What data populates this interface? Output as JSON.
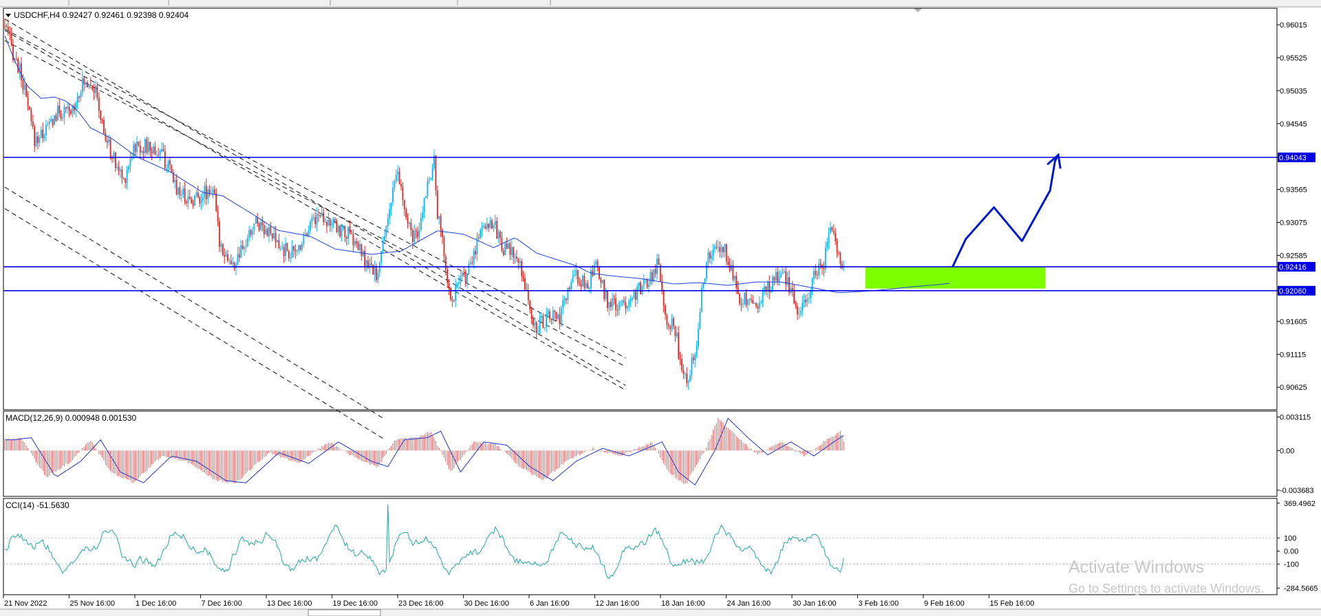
{
  "colors": {
    "bull": "#00b4ff",
    "bear": "#e0231e",
    "ma": "#2040e0",
    "level": "#0000e6",
    "zone": "#7dff00",
    "channel": "#222222",
    "macd_hist": "#e06060",
    "macd_signal": "#2233cc",
    "cci": "#20a8a0",
    "projection": "#0018d0"
  },
  "main": {
    "header": "USDCHF,H4  0.92427  0.92461  0.92398  0.92404",
    "y_ticks": [
      "0.96015",
      "0.95525",
      "0.95035",
      "0.94545",
      "0.94043",
      "0.93565",
      "0.93075",
      "0.92585",
      "0.92416",
      "0.92060",
      "0.91605",
      "0.91115",
      "0.90625"
    ],
    "levels": [
      {
        "label": "0.94043",
        "value": 0.94043
      },
      {
        "label": "0.92416",
        "value": 0.92416
      },
      {
        "label": "0.92060",
        "value": 0.9206
      }
    ]
  },
  "macd": {
    "header": "MACD(12,26,9) 0.000948 0.001530",
    "y_ticks": [
      "0.003115",
      "0.00",
      "-0.003683"
    ]
  },
  "cci": {
    "header": "CCI(14) -51.5630",
    "y_ticks": [
      "369.4962",
      "100",
      "0.00",
      "-100",
      "-284.5665"
    ]
  },
  "x_labels": [
    "21 Nov 2022",
    "25 Nov 16:00",
    "1 Dec 16:00",
    "7 Dec 16:00",
    "13 Dec 16:00",
    "19 Dec 16:00",
    "23 Dec 16:00",
    "30 Dec 16:00",
    "6 Jan 16:00",
    "12 Jan 16:00",
    "18 Jan 16:00",
    "24 Jan 16:00",
    "30 Jan 16:00",
    "3 Feb 16:00",
    "9 Feb 16:00",
    "15 Feb 16:00"
  ],
  "watermark": {
    "line1": "Activate Windows",
    "line2": "Go to Settings to activate Windows."
  },
  "chart_data": {
    "type": "candlestick",
    "symbol": "USDCHF",
    "timeframe": "H4",
    "ohlc_last": [
      0.92427,
      0.92461,
      0.92398,
      0.92404
    ],
    "ylim": [
      0.903,
      0.9625
    ],
    "moving_average_path": [
      [
        0,
        0.9585
      ],
      [
        6,
        0.9548
      ],
      [
        13,
        0.9512
      ],
      [
        22,
        0.9492
      ],
      [
        30,
        0.9494
      ],
      [
        37,
        0.9488
      ],
      [
        43,
        0.9477
      ],
      [
        52,
        0.9448
      ],
      [
        65,
        0.9432
      ],
      [
        80,
        0.9405
      ],
      [
        100,
        0.9383
      ],
      [
        120,
        0.9352
      ],
      [
        132,
        0.9347
      ],
      [
        150,
        0.932
      ],
      [
        165,
        0.9296
      ],
      [
        185,
        0.9287
      ],
      [
        200,
        0.9268
      ],
      [
        222,
        0.926
      ],
      [
        240,
        0.9265
      ],
      [
        262,
        0.9295
      ],
      [
        278,
        0.929
      ],
      [
        296,
        0.927
      ],
      [
        309,
        0.9285
      ],
      [
        322,
        0.9262
      ],
      [
        332,
        0.9254
      ],
      [
        345,
        0.9244
      ],
      [
        355,
        0.9232
      ],
      [
        368,
        0.9228
      ],
      [
        385,
        0.9224
      ],
      [
        405,
        0.9216
      ],
      [
        420,
        0.9218
      ],
      [
        438,
        0.9214
      ],
      [
        455,
        0.9219
      ],
      [
        470,
        0.9219
      ],
      [
        490,
        0.921
      ],
      [
        505,
        0.9203
      ],
      [
        520,
        0.9205
      ],
      [
        535,
        0.9208
      ],
      [
        550,
        0.9212
      ],
      [
        565,
        0.9215
      ],
      [
        572,
        0.9217
      ]
    ],
    "channel_lines": [
      [
        [
          0,
          0.961
        ],
        [
          376,
          0.9065
        ]
      ],
      [
        [
          0,
          0.9593
        ],
        [
          376,
          0.9058
        ]
      ],
      [
        [
          0,
          0.936
        ],
        [
          230,
          0.9015
        ]
      ],
      [
        [
          0,
          0.9328
        ],
        [
          230,
          0.8985
        ]
      ],
      [
        [
          0,
          0.9595
        ],
        [
          376,
          0.9106
        ]
      ],
      [
        [
          0,
          0.9578
        ],
        [
          376,
          0.9093
        ]
      ]
    ],
    "target_zone": {
      "x": [
        572,
        630
      ],
      "y": [
        0.92092,
        0.92416
      ]
    },
    "projection_path": [
      [
        574,
        0.92416
      ],
      [
        582,
        0.9283
      ],
      [
        599,
        0.933
      ],
      [
        616,
        0.928
      ],
      [
        633,
        0.9355
      ],
      [
        636,
        0.9399
      ],
      [
        638,
        0.9408
      ]
    ],
    "macd_ylim": [
      -0.0042,
      0.0036
    ],
    "cci_ylim": [
      -330,
      400
    ]
  }
}
